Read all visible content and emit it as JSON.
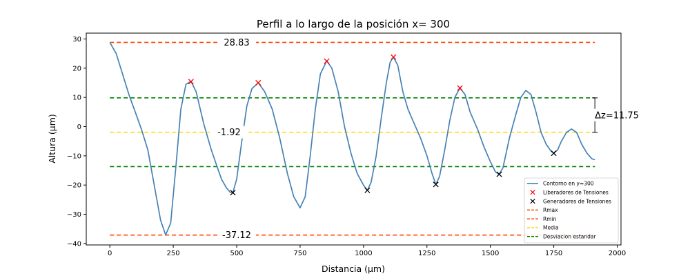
{
  "chart_data": {
    "type": "line",
    "title": "Perfil a lo largo de la posición x= 300",
    "xlabel": "Distancia (μm)",
    "ylabel": "Altura (μm)",
    "xlim": [
      -93,
      2015
    ],
    "ylim": [
      -40.5,
      32
    ],
    "x_ticks": [
      0,
      250,
      500,
      750,
      1000,
      1250,
      1500,
      1750,
      2000
    ],
    "x_tick_labels": [
      "0",
      "250",
      "500",
      "750",
      "1000",
      "1250",
      "1500",
      "1750",
      "2000"
    ],
    "y_ticks": [
      30,
      20,
      10,
      0,
      -10,
      -20,
      -30,
      -40
    ],
    "y_tick_labels": [
      "30",
      "20",
      "10",
      "0",
      "−10",
      "−20",
      "−30",
      "−40"
    ],
    "grid": false,
    "legend_position": "lower-right",
    "profile": {
      "name": "Contorno en y=300",
      "color": "#4682b4",
      "points": [
        [
          0,
          28.8
        ],
        [
          25,
          25
        ],
        [
          50,
          18
        ],
        [
          75,
          11
        ],
        [
          100,
          5
        ],
        [
          125,
          -1
        ],
        [
          150,
          -8
        ],
        [
          175,
          -20
        ],
        [
          200,
          -32
        ],
        [
          220,
          -37.1
        ],
        [
          240,
          -33
        ],
        [
          260,
          -14
        ],
        [
          280,
          6
        ],
        [
          300,
          14.5
        ],
        [
          320,
          15.5
        ],
        [
          340,
          12
        ],
        [
          370,
          1
        ],
        [
          400,
          -8
        ],
        [
          420,
          -13
        ],
        [
          440,
          -18
        ],
        [
          460,
          -21
        ],
        [
          475,
          -22.5
        ],
        [
          485,
          -22.6
        ],
        [
          500,
          -18
        ],
        [
          520,
          -5
        ],
        [
          540,
          7
        ],
        [
          560,
          13
        ],
        [
          585,
          15
        ],
        [
          610,
          12
        ],
        [
          640,
          6
        ],
        [
          670,
          -4
        ],
        [
          700,
          -16
        ],
        [
          725,
          -24
        ],
        [
          750,
          -27.8
        ],
        [
          770,
          -24
        ],
        [
          790,
          -10
        ],
        [
          810,
          6
        ],
        [
          830,
          18
        ],
        [
          855,
          22.5
        ],
        [
          875,
          20
        ],
        [
          900,
          12
        ],
        [
          925,
          0
        ],
        [
          950,
          -9
        ],
        [
          975,
          -16
        ],
        [
          1000,
          -20
        ],
        [
          1015,
          -21.8
        ],
        [
          1030,
          -19
        ],
        [
          1050,
          -10
        ],
        [
          1070,
          3
        ],
        [
          1090,
          15
        ],
        [
          1105,
          22
        ],
        [
          1118,
          23.8
        ],
        [
          1135,
          21
        ],
        [
          1155,
          12
        ],
        [
          1175,
          6
        ],
        [
          1200,
          1
        ],
        [
          1225,
          -4
        ],
        [
          1250,
          -10
        ],
        [
          1270,
          -16
        ],
        [
          1285,
          -19.8
        ],
        [
          1300,
          -17
        ],
        [
          1320,
          -8
        ],
        [
          1340,
          2
        ],
        [
          1360,
          10
        ],
        [
          1380,
          13.2
        ],
        [
          1400,
          11
        ],
        [
          1420,
          5
        ],
        [
          1450,
          -1
        ],
        [
          1475,
          -7
        ],
        [
          1500,
          -12
        ],
        [
          1520,
          -15.5
        ],
        [
          1535,
          -16.3
        ],
        [
          1550,
          -14
        ],
        [
          1575,
          -4
        ],
        [
          1600,
          4
        ],
        [
          1620,
          10
        ],
        [
          1640,
          12.4
        ],
        [
          1660,
          11
        ],
        [
          1680,
          5
        ],
        [
          1700,
          -2
        ],
        [
          1720,
          -6
        ],
        [
          1740,
          -8.5
        ],
        [
          1750,
          -9
        ],
        [
          1765,
          -8
        ],
        [
          1780,
          -5
        ],
        [
          1800,
          -2
        ],
        [
          1820,
          -0.8
        ],
        [
          1840,
          -2
        ],
        [
          1860,
          -6
        ],
        [
          1880,
          -9
        ],
        [
          1900,
          -11
        ],
        [
          1912,
          -11.3
        ]
      ]
    },
    "series_points": [
      {
        "name": "Liberadores de Tensiones",
        "marker": "x",
        "color": "#ff0000",
        "x": [
          320,
          585,
          855,
          1118,
          1380
        ],
        "y": [
          15.4,
          15.0,
          22.4,
          23.8,
          13.2
        ]
      },
      {
        "name": "Generadores de Tensiones",
        "marker": "x",
        "color": "#000000",
        "x": [
          485,
          1015,
          1285,
          1535,
          1750
        ],
        "y": [
          -22.6,
          -21.8,
          -19.8,
          -16.3,
          -9.1
        ]
      }
    ],
    "hlines": [
      {
        "name": "Rmax",
        "y": 28.83,
        "color": "#ff4500",
        "x_range": [
          0,
          1912
        ],
        "label": "28.83",
        "label_x": 500
      },
      {
        "name": "Rmin",
        "y": -37.12,
        "color": "#ff4500",
        "x_range": [
          0,
          1912
        ],
        "label": "-37.12",
        "label_x": 500
      },
      {
        "name": "Media",
        "y": -1.92,
        "color": "#ffd700",
        "x_range": [
          0,
          1912
        ],
        "label": "-1.92",
        "label_x": 470
      },
      {
        "name": "Desviacion estandar",
        "y": 9.84,
        "color": "#008000",
        "x_range": [
          0,
          1912
        ]
      },
      {
        "name": "Desviacion estandar",
        "y": -13.67,
        "color": "#008000",
        "x_range": [
          0,
          1912
        ],
        "in_legend": false
      }
    ],
    "delta_annotation": {
      "text": "Δz=11.75",
      "x": 1912,
      "y_top": 9.84,
      "y_bottom": -1.92
    },
    "legend": [
      {
        "label": "Contorno en y=300",
        "kind": "line",
        "color": "#4682b4"
      },
      {
        "label": "Liberadores de Tensiones",
        "kind": "x",
        "color": "#ff0000"
      },
      {
        "label": "Generadores de Tensiones",
        "kind": "x",
        "color": "#000000"
      },
      {
        "label": "Rmax",
        "kind": "dash",
        "color": "#ff4500"
      },
      {
        "label": "Rmin",
        "kind": "dash",
        "color": "#ff4500"
      },
      {
        "label": "Media",
        "kind": "dash",
        "color": "#ffd700"
      },
      {
        "label": "Desviacion estandar",
        "kind": "dash",
        "color": "#008000"
      }
    ]
  }
}
